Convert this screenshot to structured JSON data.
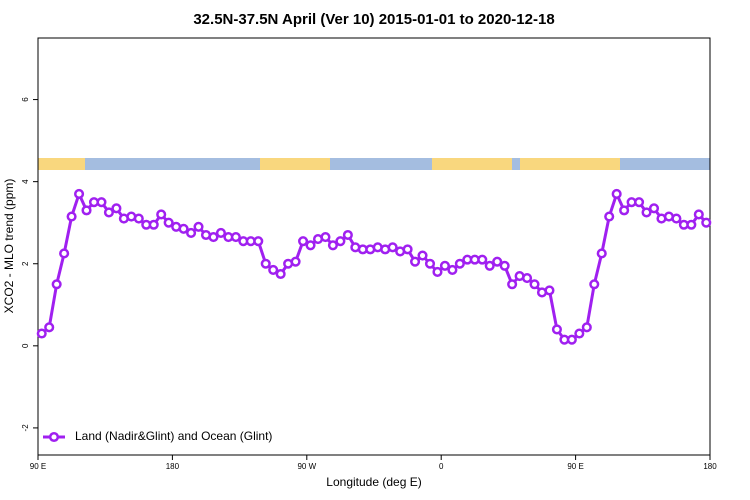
{
  "chart_data": {
    "type": "line",
    "title": "32.5N-37.5N April (Ver 10)   2015-01-01 to 2020-12-18",
    "x_label": "Longitude (deg E)",
    "y_label": "XCO2 - MLO trend (ppm)",
    "x": [
      92.5,
      97.5,
      102.5,
      107.5,
      112.5,
      117.5,
      122.5,
      127.5,
      132.5,
      137.5,
      142.5,
      147.5,
      152.5,
      157.5,
      162.5,
      167.5,
      172.5,
      177.5,
      182.5,
      187.5,
      192.5,
      197.5,
      202.5,
      207.5,
      212.5,
      217.5,
      222.5,
      227.5,
      232.5,
      237.5,
      242.5,
      247.5,
      252.5,
      257.5,
      262.5,
      267.5,
      272.5,
      277.5,
      282.5,
      287.5,
      292.5,
      297.5,
      302.5,
      307.5,
      312.5,
      317.5,
      322.5,
      327.5,
      332.5,
      337.5,
      342.5,
      347.5,
      352.5,
      357.5,
      362.5,
      367.5,
      372.5,
      377.5,
      382.5,
      387.5,
      392.5,
      397.5,
      402.5,
      407.5,
      412.5,
      417.5,
      422.5,
      427.5,
      432.5,
      437.5,
      442.5,
      447.5,
      452.5,
      457.5,
      462.5,
      467.5,
      472.5,
      477.5,
      482.5,
      487.5,
      492.5,
      497.5,
      502.5,
      507.5,
      512.5,
      517.5,
      522.5,
      527.5,
      532.5,
      537.5
    ],
    "series": [
      {
        "name": "Land (Nadir&Glint) and Ocean (Glint)",
        "color": "#a020f0",
        "values": [
          0.3,
          0.45,
          1.5,
          2.25,
          3.15,
          3.7,
          3.3,
          3.5,
          3.5,
          3.25,
          3.35,
          3.1,
          3.15,
          3.1,
          2.95,
          2.95,
          3.2,
          3.0,
          2.9,
          2.85,
          2.75,
          2.9,
          2.7,
          2.65,
          2.75,
          2.65,
          2.65,
          2.55,
          2.55,
          2.55,
          2.0,
          1.85,
          1.75,
          2.0,
          2.05,
          2.55,
          2.45,
          2.6,
          2.65,
          2.45,
          2.55,
          2.7,
          2.4,
          2.35,
          2.35,
          2.4,
          2.35,
          2.4,
          2.3,
          2.35,
          2.05,
          2.2,
          2.0,
          1.8,
          1.95,
          1.85,
          2.0,
          2.1,
          2.1,
          2.1,
          1.95,
          2.05,
          1.95,
          1.5,
          1.7,
          1.65,
          1.5,
          1.3,
          1.35,
          0.4,
          0.15,
          0.15,
          0.3,
          0.45,
          1.5,
          2.25,
          3.15,
          3.7,
          3.3,
          3.5,
          3.5,
          3.25,
          3.35,
          3.1,
          3.15,
          3.1,
          2.95,
          2.95,
          3.2,
          3.0
        ]
      }
    ],
    "xlim": [
      90,
      540
    ],
    "xticks": [
      {
        "value": 90,
        "label": "90 E"
      },
      180,
      {
        "value": 270,
        "label": "90 W"
      },
      {
        "value": 360,
        "label": "0"
      },
      {
        "value": 450,
        "label": "90 E"
      },
      180.0001
    ],
    "ylim": [
      -2.66,
      7.5
    ],
    "yticks": [
      -2,
      0,
      2,
      4,
      6
    ],
    "legend": "lower left"
  }
}
